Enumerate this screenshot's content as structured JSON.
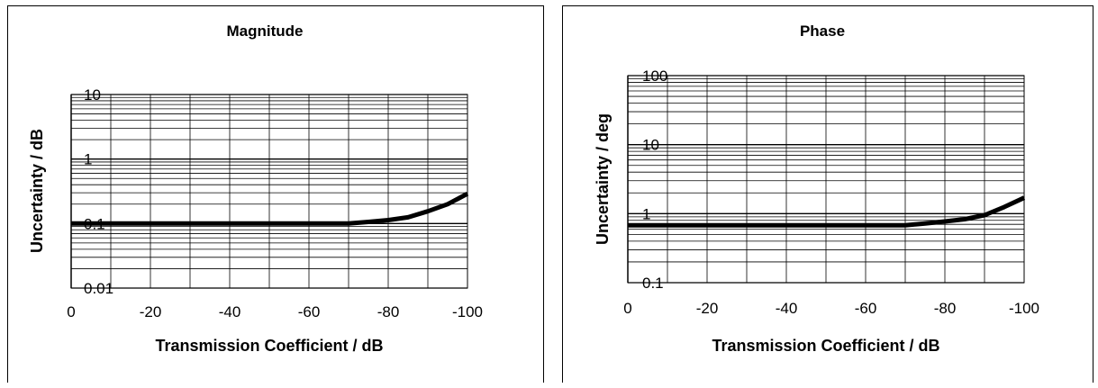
{
  "chart_data": [
    {
      "type": "line",
      "title": "Magnitude",
      "xlabel": "Transmission Coefficient / dB",
      "ylabel": "Uncertainty / dB",
      "xlim": [
        0,
        -100
      ],
      "ylim": [
        0.01,
        10
      ],
      "yscale": "log",
      "grid": true,
      "legend": "none",
      "x_ticks": [
        "0",
        "-20",
        "-40",
        "-60",
        "-80",
        "-100"
      ],
      "y_ticks": [
        "10",
        "1",
        "0.1",
        "0.01"
      ],
      "series": [
        {
          "x": [
            0,
            -10,
            -20,
            -30,
            -40,
            -50,
            -60,
            -70,
            -75,
            -80,
            -85,
            -90,
            -95,
            -100
          ],
          "y": [
            0.1,
            0.1,
            0.1,
            0.1,
            0.1,
            0.1,
            0.1,
            0.1,
            0.106,
            0.113,
            0.125,
            0.155,
            0.2,
            0.29
          ]
        }
      ]
    },
    {
      "type": "line",
      "title": "Phase",
      "xlabel": "Transmission Coefficient / dB",
      "ylabel": "Uncertainty / deg",
      "xlim": [
        0,
        -100
      ],
      "ylim": [
        0.1,
        100
      ],
      "yscale": "log",
      "grid": true,
      "legend": "none",
      "x_ticks": [
        "0",
        "-20",
        "-40",
        "-60",
        "-80",
        "-100"
      ],
      "y_ticks": [
        "100",
        "10",
        "1",
        "0.1"
      ],
      "series": [
        {
          "x": [
            0,
            -10,
            -20,
            -30,
            -40,
            -50,
            -60,
            -70,
            -75,
            -80,
            -85,
            -90,
            -95,
            -100
          ],
          "y": [
            0.68,
            0.68,
            0.68,
            0.68,
            0.68,
            0.68,
            0.68,
            0.68,
            0.72,
            0.77,
            0.83,
            0.95,
            1.25,
            1.7
          ]
        }
      ]
    }
  ]
}
